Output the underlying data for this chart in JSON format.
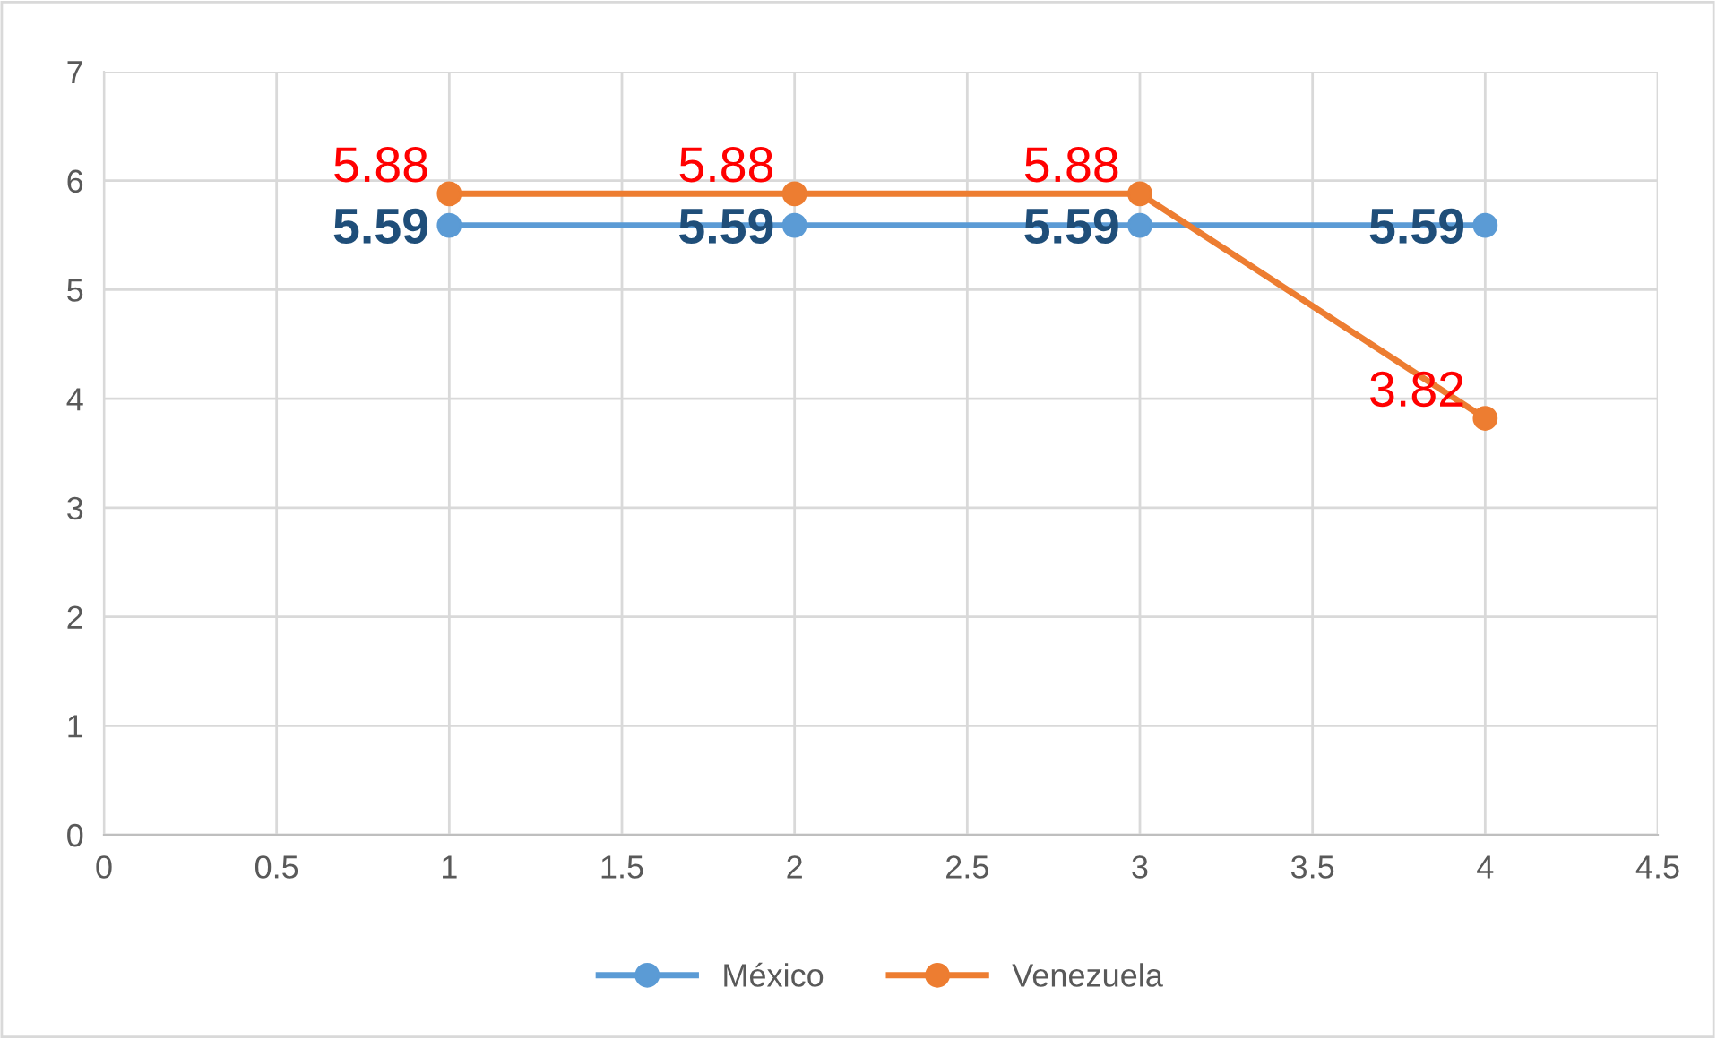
{
  "chart_data": {
    "type": "line",
    "x": [
      1,
      2,
      3,
      4
    ],
    "series": [
      {
        "name": "México",
        "color": "#5b9bd5",
        "values": [
          5.59,
          5.59,
          5.59,
          5.59
        ]
      },
      {
        "name": "Venezuela",
        "color": "#ed7d31",
        "values": [
          5.88,
          5.88,
          5.88,
          3.82
        ]
      }
    ],
    "xlim": [
      0,
      4.5
    ],
    "xticks": [
      0,
      0.5,
      1,
      1.5,
      2,
      2.5,
      3,
      3.5,
      4,
      4.5
    ],
    "ylim": [
      0,
      7
    ],
    "yticks": [
      0,
      1,
      2,
      3,
      4,
      5,
      6,
      7
    ],
    "grid": true,
    "legend": "bottom",
    "marker": "circle",
    "line_style": "solid",
    "data_labels": true
  }
}
